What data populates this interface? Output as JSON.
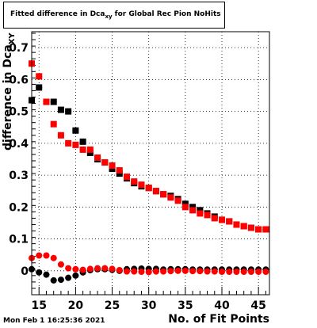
{
  "title": {
    "prefix": "Fitted difference in Dca",
    "subscript": "xy",
    "suffix": " for Global Rec Pion NoHits"
  },
  "timestamp": "Mon Feb  1 16:25:36 2021",
  "chart_data": {
    "type": "scatter",
    "xlabel": "No. of Fit Points",
    "ylabel": "difference in Dca",
    "ylabel_subscript": "XY",
    "xlim": [
      14,
      46.5
    ],
    "ylim": [
      -0.075,
      0.75
    ],
    "xticks": [
      15,
      20,
      25,
      30,
      35,
      40,
      45
    ],
    "yticks": [
      0,
      0.1,
      0.2,
      0.3,
      0.4,
      0.5,
      0.6,
      0.7
    ],
    "grid": true,
    "series": [
      {
        "color": "#000000",
        "marker": "square",
        "x": [
          14,
          15,
          16,
          17,
          18,
          19,
          20,
          21,
          22,
          23,
          24,
          25,
          26,
          27,
          28,
          29,
          30,
          31,
          32,
          33,
          34,
          35,
          36,
          37,
          38,
          39,
          40,
          41,
          42,
          43,
          44,
          45,
          46
        ],
        "y": [
          0.535,
          0.575,
          0.53,
          0.53,
          0.505,
          0.5,
          0.44,
          0.405,
          0.37,
          0.35,
          0.34,
          0.32,
          0.305,
          0.29,
          0.275,
          0.265,
          0.26,
          0.25,
          0.24,
          0.235,
          0.225,
          0.21,
          0.2,
          0.19,
          0.18,
          0.17,
          0.16,
          0.155,
          0.145,
          0.14,
          0.135,
          0.13,
          0.13
        ]
      },
      {
        "color": "#ff0000",
        "marker": "square",
        "x": [
          14,
          15,
          16,
          17,
          18,
          19,
          20,
          21,
          22,
          23,
          24,
          25,
          26,
          27,
          28,
          29,
          30,
          31,
          32,
          33,
          34,
          35,
          36,
          37,
          38,
          39,
          40,
          41,
          42,
          43,
          44,
          45,
          46
        ],
        "y": [
          0.65,
          0.61,
          0.53,
          0.46,
          0.425,
          0.4,
          0.395,
          0.38,
          0.38,
          0.355,
          0.34,
          0.33,
          0.315,
          0.295,
          0.28,
          0.27,
          0.26,
          0.25,
          0.24,
          0.23,
          0.22,
          0.2,
          0.19,
          0.18,
          0.175,
          0.165,
          0.16,
          0.155,
          0.145,
          0.14,
          0.135,
          0.13,
          0.13
        ]
      },
      {
        "color": "#000000",
        "marker": "circle",
        "x": [
          14,
          15,
          16,
          17,
          18,
          19,
          20,
          21,
          22,
          23,
          24,
          25,
          26,
          27,
          28,
          29,
          30,
          31,
          32,
          33,
          34,
          35,
          36,
          37,
          38,
          39,
          40,
          41,
          42,
          43,
          44,
          45,
          46
        ],
        "y": [
          0.005,
          -0.005,
          -0.012,
          -0.03,
          -0.028,
          -0.022,
          -0.015,
          -0.005,
          0.002,
          0.005,
          0.005,
          0.003,
          0.0,
          0.005,
          0.006,
          0.007,
          0.006,
          0.006,
          0.004,
          0.005,
          0.005,
          0.005,
          0.004,
          0.004,
          0.004,
          0.004,
          0.004,
          0.004,
          0.004,
          0.004,
          0.004,
          0.004,
          0.004
        ]
      },
      {
        "color": "#ff0000",
        "marker": "circle",
        "x": [
          14,
          15,
          16,
          17,
          18,
          19,
          20,
          21,
          22,
          23,
          24,
          25,
          26,
          27,
          28,
          29,
          30,
          31,
          32,
          33,
          34,
          35,
          36,
          37,
          38,
          39,
          40,
          41,
          42,
          43,
          44,
          45,
          46
        ],
        "y": [
          0.04,
          0.048,
          0.048,
          0.04,
          0.02,
          0.008,
          0.005,
          0.003,
          0.006,
          0.008,
          0.008,
          0.006,
          0.002,
          -0.002,
          -0.002,
          -0.003,
          -0.004,
          -0.002,
          -0.002,
          -0.001,
          0.0,
          0.0,
          -0.001,
          -0.001,
          -0.002,
          -0.002,
          -0.003,
          -0.003,
          -0.003,
          -0.003,
          -0.003,
          -0.003,
          -0.003
        ]
      }
    ]
  }
}
